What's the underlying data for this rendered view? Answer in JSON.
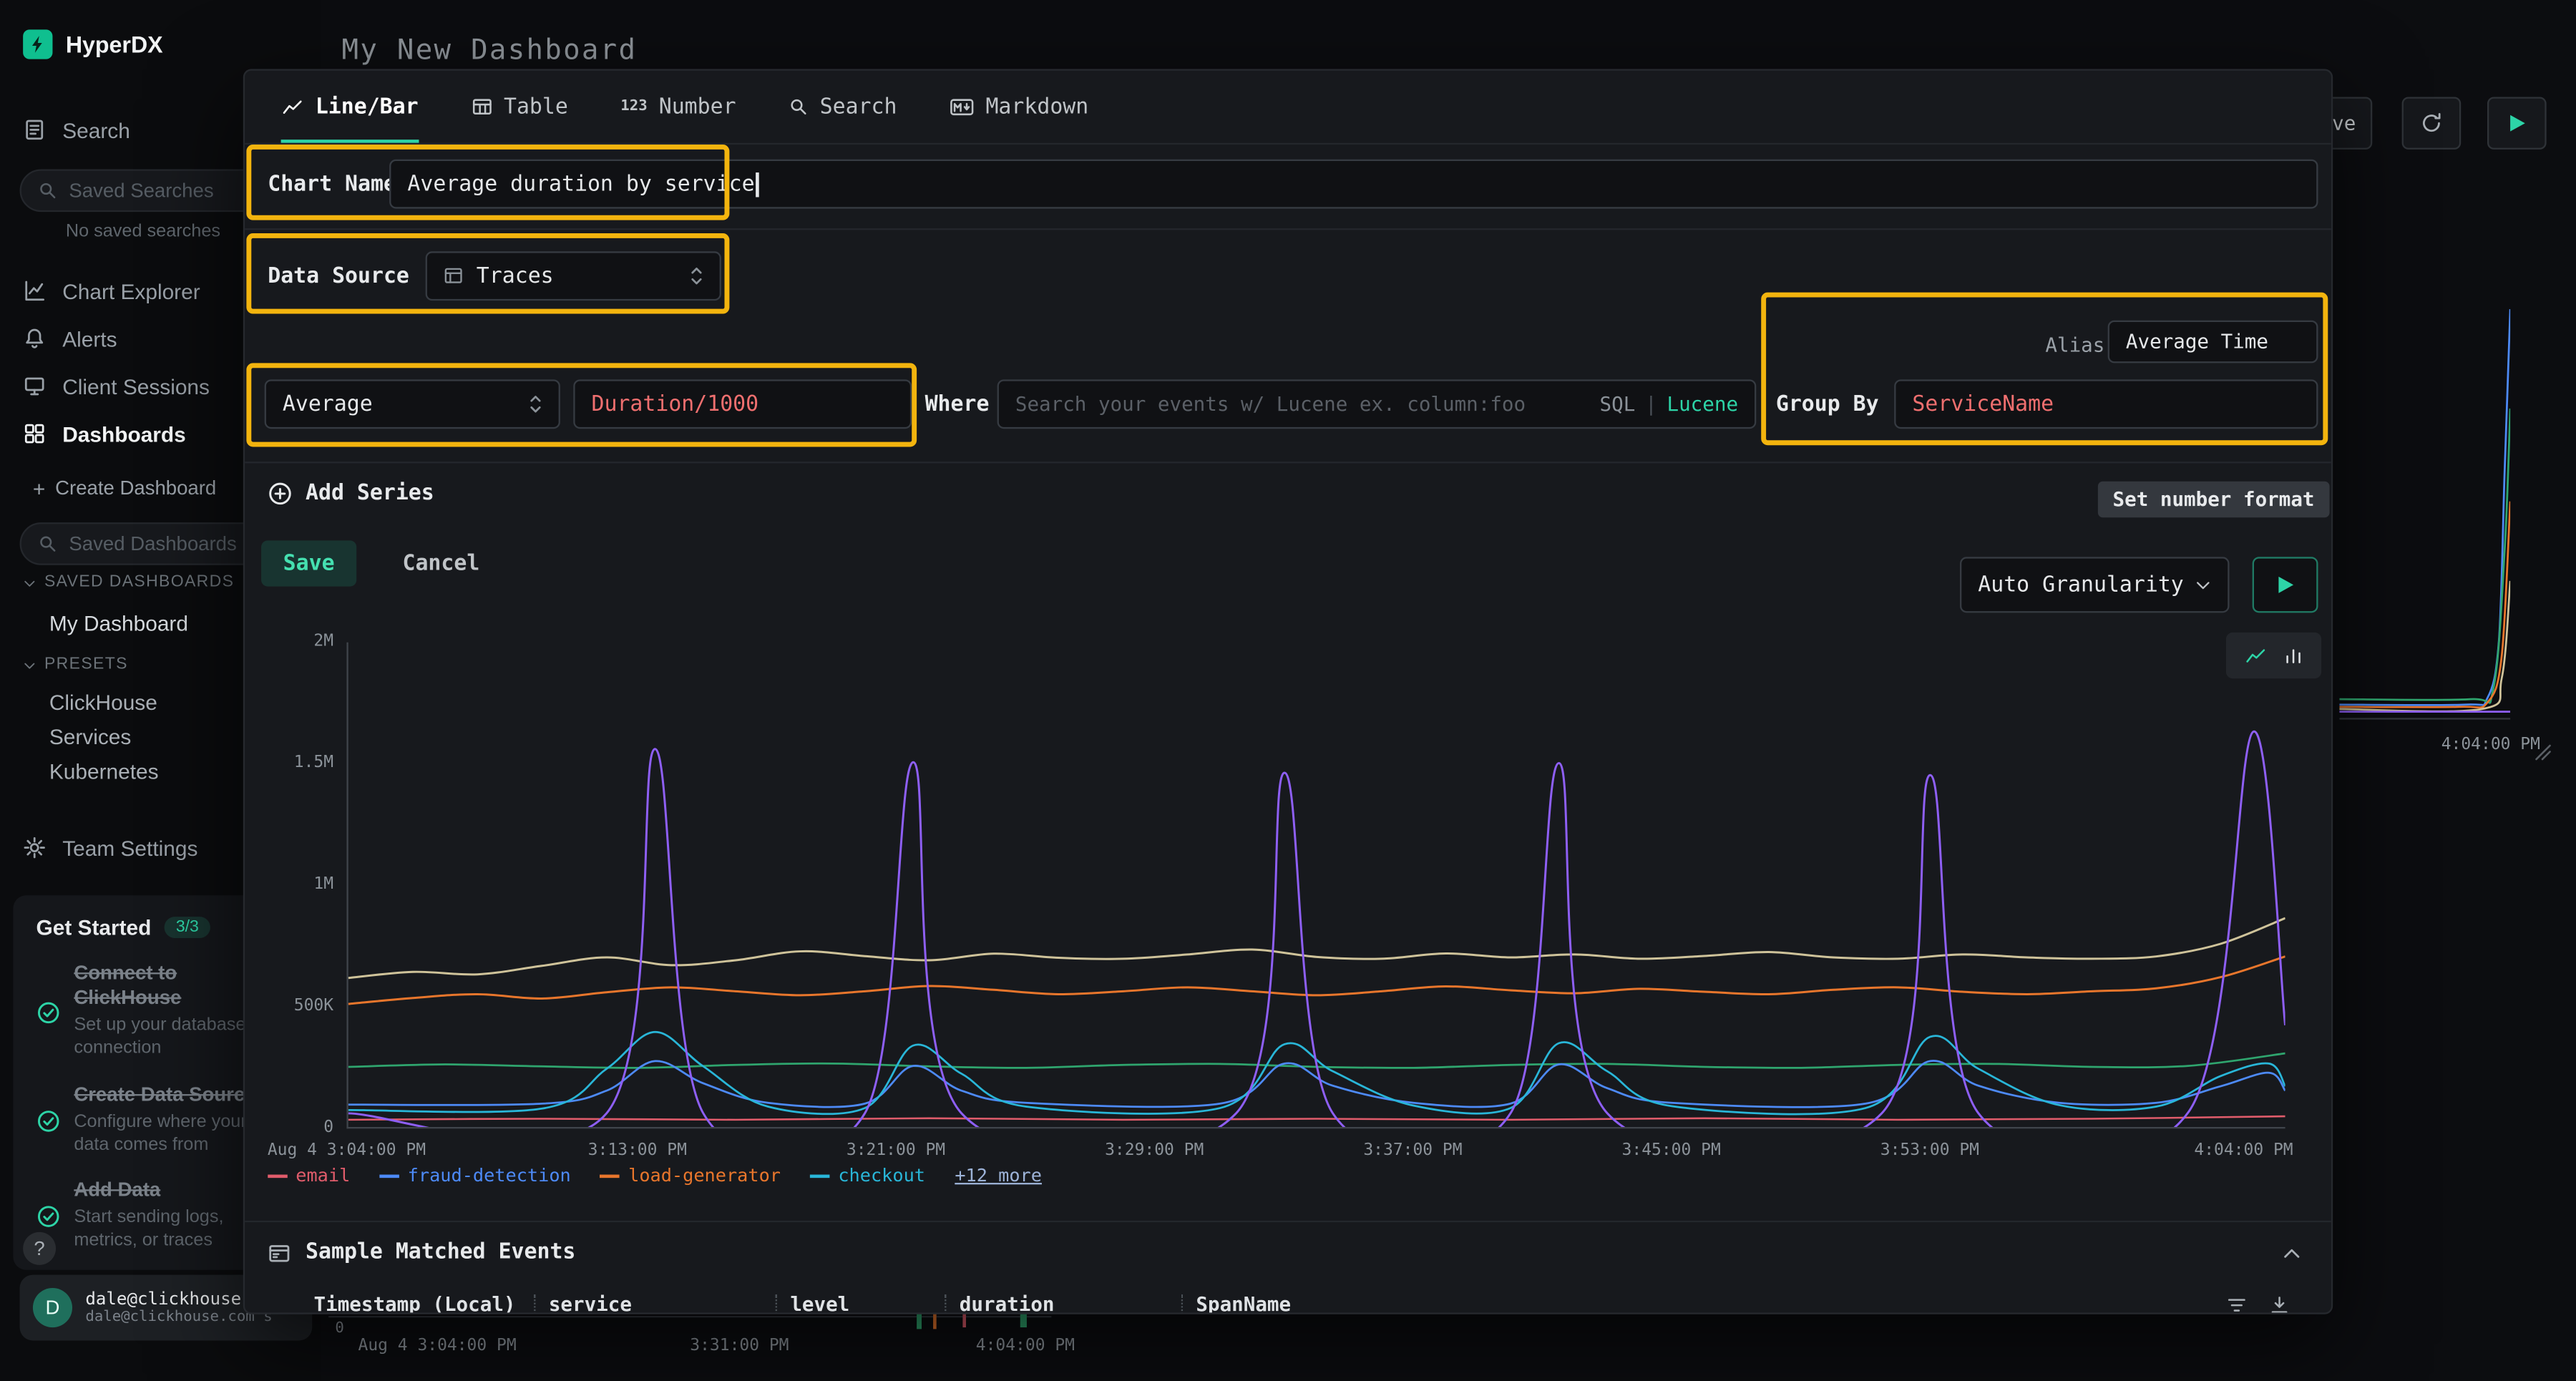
{
  "colors": {
    "accent": "#2dd4a7",
    "highlight": "#f3b40e",
    "code_red": "#ef6f6f",
    "modal_bg": "#17191d",
    "page_bg": "#0c0d10"
  },
  "app": {
    "brand": "HyperDX",
    "page_title": "My New Dashboard"
  },
  "header": {
    "partial_button": "ve"
  },
  "sidebar": {
    "nav": [
      {
        "label": "Search"
      },
      {
        "label": "Chart Explorer"
      },
      {
        "label": "Alerts"
      },
      {
        "label": "Client Sessions"
      },
      {
        "label": "Dashboards"
      }
    ],
    "saved_searches_placeholder": "Saved Searches",
    "no_saved_searches": "No saved searches",
    "create_dashboard": "Create Dashboard",
    "saved_dashboards_placeholder": "Saved Dashboards",
    "section_saved": "SAVED DASHBOARDS",
    "dashboard_items": [
      "My Dashboard"
    ],
    "section_presets": "PRESETS",
    "preset_items": [
      "ClickHouse",
      "Services",
      "Kubernetes"
    ],
    "team_settings": "Team Settings",
    "get_started": {
      "title": "Get Started",
      "badge": "3/3",
      "items": [
        {
          "title": "Connect to ClickHouse",
          "desc": "Set up your database connection"
        },
        {
          "title": "Create Data Source",
          "desc": "Configure where your data comes from"
        },
        {
          "title": "Add Data",
          "desc": "Start sending logs, metrics, or traces"
        }
      ]
    },
    "help": "?",
    "user": {
      "initial": "D",
      "email": "dale@clickhouse.c",
      "org": "dale@clickhouse.com's"
    }
  },
  "modal": {
    "tabs": [
      {
        "label": "Line/Bar"
      },
      {
        "label": "Table"
      },
      {
        "label": "Number"
      },
      {
        "label": "Search"
      },
      {
        "label": "Markdown"
      }
    ],
    "number_tab_icon": "123",
    "chart_name_label": "Chart Name",
    "chart_name_value": "Average duration by service",
    "data_source_label": "Data Source",
    "data_source_value": "Traces",
    "aggregation_value": "Average",
    "field_value": "Duration/1000",
    "where_label": "Where",
    "where_placeholder": "Search your events w/ Lucene ex. column:foo",
    "sql_label": "SQL",
    "toggle_divider": "|",
    "lucene_label": "Lucene",
    "group_by_label": "Group By",
    "group_by_value": "ServiceName",
    "alias_label": "Alias",
    "alias_value": "Average Time",
    "add_series_label": "Add Series",
    "set_number_format_label": "Set number format",
    "save_label": "Save",
    "cancel_label": "Cancel",
    "granularity_value": "Auto Granularity",
    "sample_events_title": "Sample Matched Events",
    "columns": [
      "Timestamp (Local)",
      "service",
      "level",
      "duration",
      "SpanName"
    ]
  },
  "chart_data": {
    "type": "line",
    "title": "Average duration by service",
    "x_unit": "minutes after Aug 4 3:04:00 PM",
    "xlim": [
      0,
      60
    ],
    "y_unit": "duration (thousands)",
    "ylim": [
      0,
      2000
    ],
    "grid": false,
    "y_ticks": [
      {
        "v": 0,
        "label": "0"
      },
      {
        "v": 500,
        "label": "500K"
      },
      {
        "v": 1000,
        "label": "1M"
      },
      {
        "v": 1500,
        "label": "1.5M"
      },
      {
        "v": 2000,
        "label": "2M"
      }
    ],
    "x_ticks": [
      {
        "m": 0,
        "label": "Aug 4 3:04:00 PM"
      },
      {
        "m": 9,
        "label": "3:13:00 PM"
      },
      {
        "m": 17,
        "label": "3:21:00 PM"
      },
      {
        "m": 25,
        "label": "3:29:00 PM"
      },
      {
        "m": 33,
        "label": "3:37:00 PM"
      },
      {
        "m": 41,
        "label": "3:45:00 PM"
      },
      {
        "m": 49,
        "label": "3:53:00 PM"
      },
      {
        "m": 60,
        "label": "4:04:00 PM"
      }
    ],
    "legend": [
      {
        "name": "email",
        "color": "#e05c6b"
      },
      {
        "name": "fraud-detection",
        "color": "#4d8af7"
      },
      {
        "name": "load-generator",
        "color": "#e8762c"
      },
      {
        "name": "checkout",
        "color": "#29b6d8"
      }
    ],
    "legend_more": "+12 more",
    "series": [
      {
        "name": "",
        "color": "#cfc39a",
        "width": 1.3,
        "points": [
          [
            0,
            615
          ],
          [
            2,
            640
          ],
          [
            4,
            630
          ],
          [
            6,
            665
          ],
          [
            8,
            700
          ],
          [
            10,
            668
          ],
          [
            12,
            688
          ],
          [
            14,
            725
          ],
          [
            16,
            705
          ],
          [
            18,
            688
          ],
          [
            20,
            715
          ],
          [
            22,
            698
          ],
          [
            24,
            694
          ],
          [
            26,
            712
          ],
          [
            28,
            732
          ],
          [
            30,
            702
          ],
          [
            32,
            694
          ],
          [
            34,
            716
          ],
          [
            36,
            700
          ],
          [
            38,
            712
          ],
          [
            40,
            694
          ],
          [
            42,
            706
          ],
          [
            44,
            722
          ],
          [
            46,
            700
          ],
          [
            48,
            694
          ],
          [
            50,
            712
          ],
          [
            52,
            700
          ],
          [
            54,
            694
          ],
          [
            56,
            704
          ],
          [
            58,
            756
          ],
          [
            60,
            862
          ]
        ]
      },
      {
        "name": "load-generator",
        "color": "#e8762c",
        "width": 1.3,
        "points": [
          [
            0,
            508
          ],
          [
            2,
            532
          ],
          [
            4,
            548
          ],
          [
            6,
            530
          ],
          [
            8,
            556
          ],
          [
            10,
            576
          ],
          [
            12,
            560
          ],
          [
            14,
            544
          ],
          [
            16,
            560
          ],
          [
            18,
            582
          ],
          [
            20,
            566
          ],
          [
            22,
            548
          ],
          [
            24,
            560
          ],
          [
            26,
            576
          ],
          [
            28,
            560
          ],
          [
            30,
            544
          ],
          [
            32,
            560
          ],
          [
            34,
            580
          ],
          [
            36,
            564
          ],
          [
            38,
            552
          ],
          [
            40,
            570
          ],
          [
            42,
            558
          ],
          [
            44,
            548
          ],
          [
            46,
            566
          ],
          [
            48,
            576
          ],
          [
            50,
            558
          ],
          [
            52,
            548
          ],
          [
            54,
            560
          ],
          [
            56,
            572
          ],
          [
            58,
            618
          ],
          [
            60,
            704
          ]
        ]
      },
      {
        "name": "",
        "color": "#2fa56e",
        "width": 1.2,
        "points": [
          [
            0,
            248
          ],
          [
            3,
            258
          ],
          [
            6,
            250
          ],
          [
            9,
            244
          ],
          [
            12,
            256
          ],
          [
            15,
            262
          ],
          [
            18,
            250
          ],
          [
            21,
            244
          ],
          [
            24,
            256
          ],
          [
            27,
            260
          ],
          [
            30,
            248
          ],
          [
            33,
            244
          ],
          [
            36,
            256
          ],
          [
            39,
            260
          ],
          [
            42,
            248
          ],
          [
            45,
            244
          ],
          [
            48,
            256
          ],
          [
            51,
            260
          ],
          [
            54,
            248
          ],
          [
            57,
            252
          ],
          [
            60,
            304
          ]
        ]
      },
      {
        "name": "email",
        "color": "#e05c6b",
        "width": 1.1,
        "points": [
          [
            0,
            30
          ],
          [
            6,
            34
          ],
          [
            12,
            30
          ],
          [
            18,
            36
          ],
          [
            24,
            30
          ],
          [
            30,
            34
          ],
          [
            36,
            30
          ],
          [
            42,
            36
          ],
          [
            48,
            30
          ],
          [
            54,
            34
          ],
          [
            60,
            44
          ]
        ]
      },
      {
        "name": "fraud-detection",
        "color": "#4d8af7",
        "width": 1.2,
        "points": [
          [
            0,
            92
          ],
          [
            6,
            96
          ],
          [
            8,
            150
          ],
          [
            9.5,
            272
          ],
          [
            11,
            180
          ],
          [
            13,
            100
          ],
          [
            16,
            96
          ],
          [
            17.5,
            252
          ],
          [
            19,
            150
          ],
          [
            21,
            100
          ],
          [
            27,
            96
          ],
          [
            29,
            262
          ],
          [
            30.5,
            170
          ],
          [
            33,
            100
          ],
          [
            36,
            96
          ],
          [
            37.5,
            258
          ],
          [
            39,
            160
          ],
          [
            41,
            100
          ],
          [
            47,
            96
          ],
          [
            49,
            272
          ],
          [
            50.5,
            170
          ],
          [
            53,
            100
          ],
          [
            56,
            100
          ],
          [
            58,
            168
          ],
          [
            59.5,
            224
          ],
          [
            60,
            150
          ]
        ]
      },
      {
        "name": "checkout",
        "color": "#29b6d8",
        "width": 1.2,
        "points": [
          [
            0,
            70
          ],
          [
            6,
            76
          ],
          [
            8,
            240
          ],
          [
            9.5,
            392
          ],
          [
            11,
            250
          ],
          [
            13,
            84
          ],
          [
            16,
            78
          ],
          [
            17.5,
            336
          ],
          [
            19,
            220
          ],
          [
            21,
            84
          ],
          [
            27,
            78
          ],
          [
            29,
            342
          ],
          [
            30.5,
            230
          ],
          [
            33,
            88
          ],
          [
            36,
            78
          ],
          [
            37.5,
            346
          ],
          [
            39,
            230
          ],
          [
            41,
            86
          ],
          [
            47,
            78
          ],
          [
            49,
            372
          ],
          [
            50.5,
            240
          ],
          [
            53,
            90
          ],
          [
            56,
            84
          ],
          [
            58,
            210
          ],
          [
            59.5,
            262
          ],
          [
            60,
            168
          ]
        ]
      },
      {
        "name": "",
        "color": "#8e5ff5",
        "width": 1.3,
        "points": [
          [
            0,
            56
          ],
          [
            8,
            56
          ],
          [
            9.5,
            1560
          ],
          [
            11,
            56
          ],
          [
            16,
            56
          ],
          [
            17.5,
            1505
          ],
          [
            19,
            56
          ],
          [
            27.5,
            56
          ],
          [
            29,
            1462
          ],
          [
            30.5,
            56
          ],
          [
            36,
            56
          ],
          [
            37.5,
            1502
          ],
          [
            39,
            56
          ],
          [
            47.5,
            56
          ],
          [
            49,
            1452
          ],
          [
            50.5,
            56
          ],
          [
            57,
            60
          ],
          [
            59,
            1630
          ],
          [
            60,
            420
          ]
        ]
      }
    ]
  },
  "background": {
    "mini_chart": {
      "type": "line",
      "xlim": [
        0,
        60
      ],
      "ylim": [
        0,
        2000
      ],
      "series": [
        {
          "color": "#4d8af7",
          "points": [
            [
              0,
              60
            ],
            [
              44,
              60
            ],
            [
              52,
              90
            ],
            [
              56,
              350
            ],
            [
              58,
              1100
            ],
            [
              60,
              1850
            ]
          ]
        },
        {
          "color": "#2fa56e",
          "points": [
            [
              0,
              85
            ],
            [
              46,
              85
            ],
            [
              54,
              130
            ],
            [
              58,
              750
            ],
            [
              60,
              1400
            ]
          ]
        },
        {
          "color": "#e8762c",
          "points": [
            [
              0,
              50
            ],
            [
              42,
              50
            ],
            [
              52,
              70
            ],
            [
              57,
              280
            ],
            [
              60,
              980
            ]
          ]
        },
        {
          "color": "#cfc39a",
          "points": [
            [
              0,
              40
            ],
            [
              50,
              40
            ],
            [
              57,
              180
            ],
            [
              60,
              620
            ]
          ]
        },
        {
          "color": "#8e5ff5",
          "points": [
            [
              0,
              28
            ],
            [
              60,
              28
            ]
          ]
        }
      ]
    },
    "mini_chart_time": "4:04:00 PM",
    "bottom_zero": "0",
    "bottom_ticks": [
      "Aug 4 3:04:00 PM",
      "3:31:00 PM",
      "4:04:00 PM"
    ]
  }
}
